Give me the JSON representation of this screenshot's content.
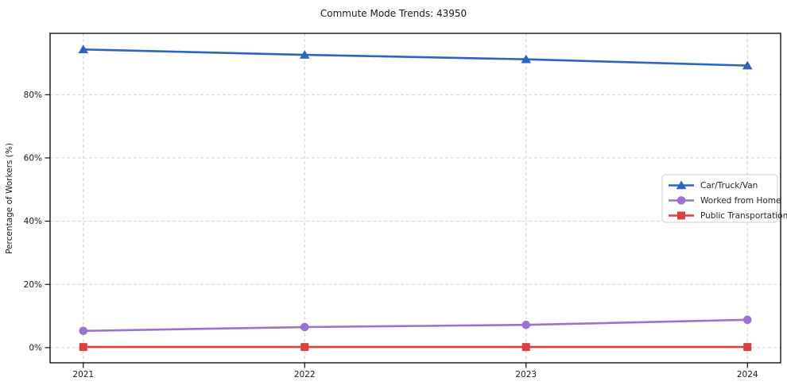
{
  "chart_data": {
    "type": "line",
    "title": "Commute Mode Trends: 43950",
    "xlabel": "",
    "ylabel": "Percentage of Workers (%)",
    "x": [
      2021,
      2022,
      2023,
      2024
    ],
    "x_tick_labels": [
      "2021",
      "2022",
      "2023",
      "2024"
    ],
    "y_ticks": [
      0,
      20,
      40,
      60,
      80
    ],
    "y_tick_labels": [
      "0%",
      "20%",
      "40%",
      "60%",
      "80%"
    ],
    "xlim": [
      2020.85,
      2024.15
    ],
    "ylim": [
      -4.8,
      99.4
    ],
    "grid": true,
    "grid_style": "dashed",
    "grid_color": "#d2d2d2",
    "legend_position": "center-right",
    "series": [
      {
        "name": "Car/Truck/Van",
        "marker": "triangle",
        "color": "#2f63c1",
        "values": [
          94.3,
          92.6,
          91.2,
          89.2
        ]
      },
      {
        "name": "Worked from Home",
        "marker": "circle",
        "color": "#9b72d4",
        "values": [
          5.3,
          6.5,
          7.2,
          8.8
        ]
      },
      {
        "name": "Public Transportation",
        "marker": "square",
        "color": "#d64141",
        "values": [
          0.2,
          0.2,
          0.2,
          0.2
        ]
      }
    ]
  }
}
